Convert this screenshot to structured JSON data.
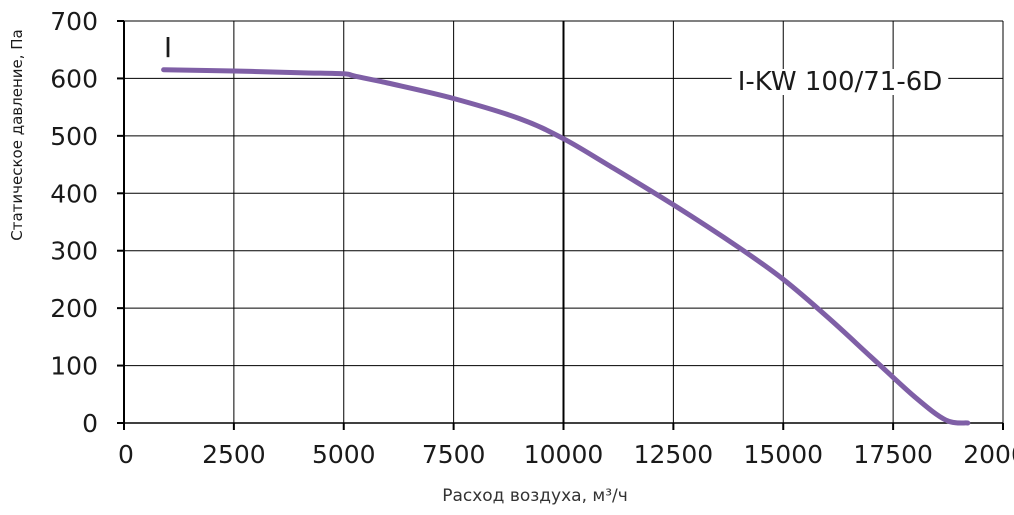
{
  "chart_data": {
    "type": "line",
    "title": "",
    "xlabel": "Расход воздуха, м³/ч",
    "ylabel": "Статическое давление, Па",
    "xlim": [
      0,
      20000
    ],
    "ylim": [
      0,
      700
    ],
    "x_ticks": [
      0,
      2500,
      5000,
      7500,
      10000,
      12500,
      15000,
      17500,
      20000
    ],
    "y_ticks": [
      0,
      100,
      200,
      300,
      400,
      500,
      600,
      700
    ],
    "x_tick_labels": [
      "0",
      "2500",
      "5000",
      "7500",
      "10000",
      "12500",
      "15000",
      "17500",
      "20000"
    ],
    "y_tick_labels": [
      "0",
      "100",
      "200",
      "300",
      "400",
      "500",
      "600",
      "700"
    ],
    "grid": true,
    "emphasized_gridline_x": 10000,
    "series": [
      {
        "name": "I-KW 100/71-6D",
        "marker_label": "I",
        "color": "#7f5fa6",
        "x": [
          900,
          2500,
          4000,
          5000,
          5250,
          6000,
          7500,
          9000,
          10000,
          11000,
          12500,
          14000,
          15000,
          16000,
          17000,
          18000,
          18700,
          19200
        ],
        "y": [
          615,
          613,
          610,
          608,
          604,
          592,
          565,
          530,
          495,
          450,
          380,
          305,
          250,
          185,
          115,
          45,
          5,
          0
        ]
      }
    ]
  }
}
